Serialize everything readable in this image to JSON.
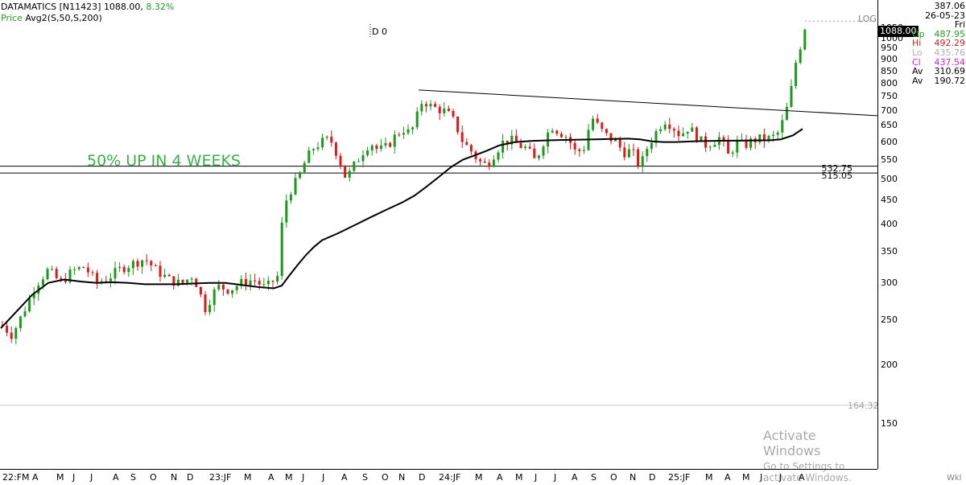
{
  "header": {
    "symbol": "DATAMATICS [N11423]",
    "last_price": "1088.00,",
    "change": "8.32%",
    "indicator_prefix": "Price",
    "indicator": "Avg2(S,50,S,200)"
  },
  "scale_mode": "LOG",
  "scale_hint": "Wkl",
  "price_tag": "1088.00",
  "cursor_label": "D 0",
  "annotation": "50% UP IN 4 WEEKS",
  "ohlc_panel": {
    "value": "387.06",
    "date": "26-05-23 Fri",
    "rows": [
      {
        "label": "Op",
        "value": "487.95",
        "color": "#1fa11f"
      },
      {
        "label": "Hi",
        "value": "492.29",
        "color": "#d42020"
      },
      {
        "label": "Lo",
        "value": "435.76",
        "color": "#b0b0b0"
      },
      {
        "label": "Cl",
        "value": "437.54",
        "color": "#e020e0"
      },
      {
        "label": "Av",
        "value": "310.69",
        "color": "#000000"
      },
      {
        "label": "Av",
        "value": "190.72",
        "color": "#000000"
      }
    ]
  },
  "watermark": {
    "line1": "Activate Windows",
    "line2": "Go to Settings to activate Windows."
  },
  "levels": {
    "upper": "532.75",
    "lower": "515.05",
    "bottom": "164.32"
  },
  "colors": {
    "up": "#1a9a1a",
    "down": "#e01818",
    "ma": "#000000",
    "annotation": "#38b14a"
  },
  "chart_data": {
    "type": "candlestick",
    "y_scale": "log",
    "y_ticks": [
      "150",
      "200",
      "250",
      "300",
      "350",
      "400",
      "450",
      "500",
      "550",
      "600",
      "650",
      "700",
      "750",
      "800",
      "850",
      "900",
      "950",
      "1000",
      "1050"
    ],
    "x_ticks": [
      "22:FM",
      "A",
      "M",
      "J",
      "J",
      "A",
      "S",
      "O",
      "N",
      "D",
      "23:JF",
      "M",
      "A",
      "M",
      "J",
      "J",
      "A",
      "S",
      "O",
      "N",
      "D",
      "24:JF",
      "M",
      "A",
      "M",
      "J",
      "J",
      "A",
      "S",
      "O",
      "N",
      "D",
      "25:JF",
      "M",
      "A",
      "M",
      "J",
      "J",
      "A"
    ],
    "price_path": [
      [
        1,
        245
      ],
      [
        15,
        232
      ],
      [
        30,
        262
      ],
      [
        45,
        298
      ],
      [
        60,
        320
      ],
      [
        75,
        300
      ],
      [
        90,
        318
      ],
      [
        105,
        325
      ],
      [
        120,
        300
      ],
      [
        135,
        308
      ],
      [
        150,
        322
      ],
      [
        165,
        330
      ],
      [
        180,
        338
      ],
      [
        195,
        318
      ],
      [
        210,
        305
      ],
      [
        225,
        298
      ],
      [
        240,
        312
      ],
      [
        255,
        265
      ],
      [
        270,
        295
      ],
      [
        285,
        290
      ],
      [
        300,
        300
      ],
      [
        315,
        305
      ],
      [
        330,
        292
      ],
      [
        345,
        310
      ],
      [
        352,
        435
      ],
      [
        360,
        470
      ],
      [
        370,
        500
      ],
      [
        380,
        550
      ],
      [
        390,
        585
      ],
      [
        400,
        600
      ],
      [
        410,
        610
      ],
      [
        420,
        560
      ],
      [
        430,
        500
      ],
      [
        440,
        535
      ],
      [
        450,
        570
      ],
      [
        460,
        600
      ],
      [
        470,
        575
      ],
      [
        480,
        585
      ],
      [
        490,
        615
      ],
      [
        500,
        640
      ],
      [
        510,
        625
      ],
      [
        518,
        680
      ],
      [
        525,
        740
      ],
      [
        535,
        715
      ],
      [
        545,
        705
      ],
      [
        555,
        695
      ],
      [
        565,
        660
      ],
      [
        575,
        600
      ],
      [
        585,
        575
      ],
      [
        595,
        545
      ],
      [
        605,
        535
      ],
      [
        615,
        570
      ],
      [
        625,
        600
      ],
      [
        635,
        605
      ],
      [
        645,
        590
      ],
      [
        655,
        580
      ],
      [
        665,
        545
      ],
      [
        675,
        600
      ],
      [
        685,
        650
      ],
      [
        695,
        630
      ],
      [
        705,
        615
      ],
      [
        715,
        570
      ],
      [
        725,
        580
      ],
      [
        735,
        680
      ],
      [
        745,
        640
      ],
      [
        755,
        615
      ],
      [
        765,
        600
      ],
      [
        775,
        570
      ],
      [
        785,
        575
      ],
      [
        795,
        530
      ],
      [
        805,
        590
      ],
      [
        815,
        630
      ],
      [
        825,
        670
      ],
      [
        835,
        650
      ],
      [
        845,
        620
      ],
      [
        855,
        645
      ],
      [
        865,
        620
      ],
      [
        875,
        590
      ],
      [
        885,
        600
      ],
      [
        895,
        615
      ],
      [
        905,
        560
      ],
      [
        915,
        600
      ],
      [
        925,
        590
      ],
      [
        935,
        605
      ],
      [
        945,
        610
      ],
      [
        955,
        610
      ],
      [
        965,
        620
      ],
      [
        975,
        680
      ],
      [
        982,
        760
      ],
      [
        988,
        880
      ],
      [
        994,
        960
      ],
      [
        1000,
        1060
      ]
    ],
    "ma_slow": [
      [
        1,
        240
      ],
      [
        20,
        260
      ],
      [
        40,
        283
      ],
      [
        60,
        300
      ],
      [
        80,
        305
      ],
      [
        100,
        302
      ],
      [
        120,
        300
      ],
      [
        140,
        301
      ],
      [
        160,
        300
      ],
      [
        180,
        298
      ],
      [
        200,
        298
      ],
      [
        220,
        298
      ],
      [
        240,
        299
      ],
      [
        260,
        300
      ],
      [
        280,
        300
      ],
      [
        300,
        297
      ],
      [
        320,
        294
      ],
      [
        340,
        292
      ],
      [
        350,
        296
      ],
      [
        360,
        312
      ],
      [
        370,
        328
      ],
      [
        380,
        344
      ],
      [
        390,
        358
      ],
      [
        400,
        370
      ],
      [
        420,
        383
      ],
      [
        440,
        398
      ],
      [
        460,
        414
      ],
      [
        480,
        430
      ],
      [
        500,
        446
      ],
      [
        515,
        461
      ],
      [
        530,
        482
      ],
      [
        545,
        505
      ],
      [
        560,
        530
      ],
      [
        575,
        550
      ],
      [
        590,
        562
      ],
      [
        605,
        575
      ],
      [
        620,
        590
      ],
      [
        640,
        600
      ],
      [
        660,
        603
      ],
      [
        680,
        605
      ],
      [
        700,
        606
      ],
      [
        720,
        607
      ],
      [
        740,
        608
      ],
      [
        760,
        609
      ],
      [
        780,
        610
      ],
      [
        795,
        608
      ],
      [
        810,
        602
      ],
      [
        825,
        600
      ],
      [
        840,
        600
      ],
      [
        860,
        602
      ],
      [
        880,
        603
      ],
      [
        900,
        604
      ],
      [
        920,
        604
      ],
      [
        940,
        605
      ],
      [
        955,
        605
      ],
      [
        970,
        608
      ],
      [
        985,
        620
      ],
      [
        997,
        640
      ]
    ],
    "trendline": [
      [
        520,
        775
      ],
      [
        1090,
        683
      ]
    ],
    "horizontal_levels": [
      532.75,
      515.05
    ],
    "x_range": [
      0,
      1090
    ],
    "y_range": [
      130,
      1160
    ]
  }
}
